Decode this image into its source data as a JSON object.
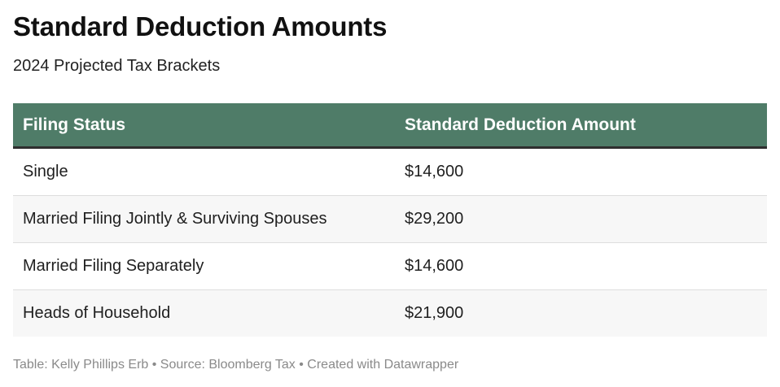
{
  "title": "Standard Deduction Amounts",
  "subtitle": "2024 Projected Tax Brackets",
  "colors": {
    "header_bg": "#4f7c68",
    "header_text": "#ffffff",
    "header_rule": "#2e2e2e",
    "row_alt_bg": "#f7f7f7",
    "footer_text": "#8a8a8a"
  },
  "footer": "Table: Kelly Phillips Erb • Source: Bloomberg Tax • Created with Datawrapper",
  "chart_data": {
    "type": "table",
    "title": "Standard Deduction Amounts",
    "subtitle": "2024 Projected Tax Brackets",
    "columns": [
      "Filing Status",
      "Standard Deduction Amount"
    ],
    "rows": [
      [
        "Single",
        "$14,600"
      ],
      [
        "Married Filing Jointly & Surviving Spouses",
        "$29,200"
      ],
      [
        "Married Filing Separately",
        "$14,600"
      ],
      [
        "Heads of Household",
        "$21,900"
      ]
    ]
  }
}
